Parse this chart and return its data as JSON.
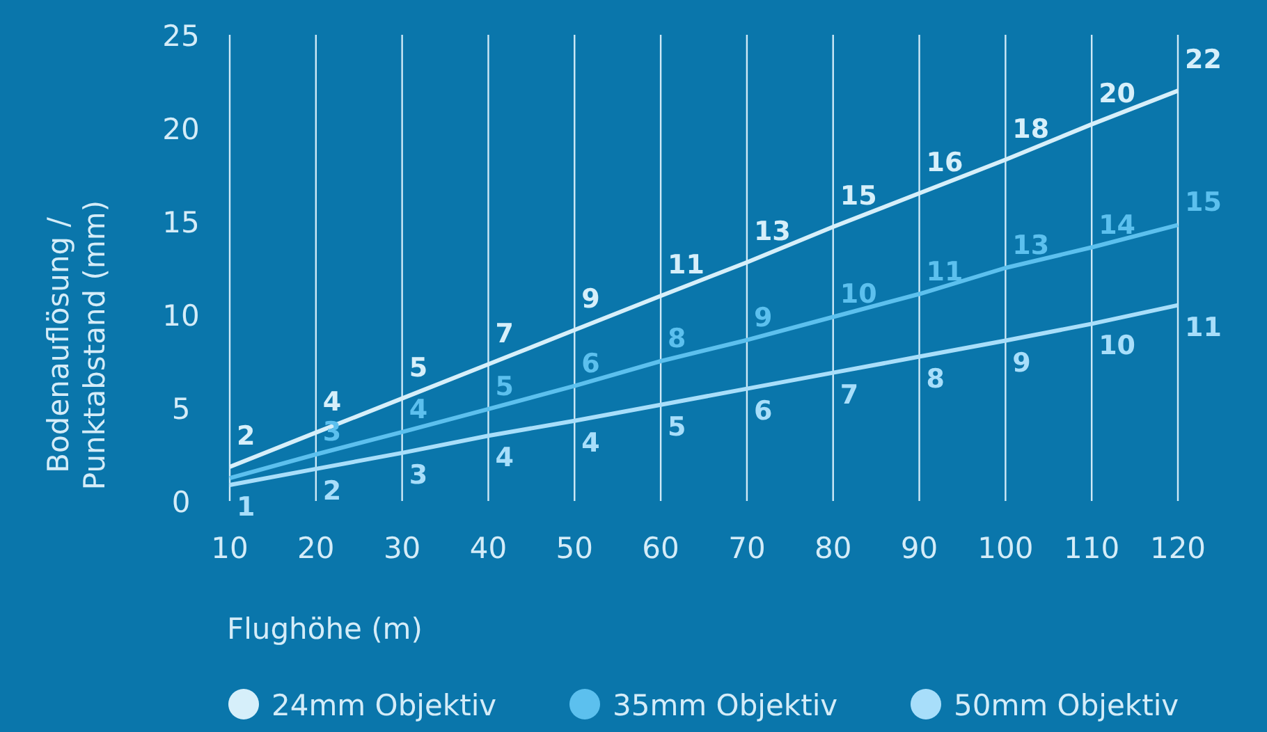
{
  "chart_data": {
    "type": "line",
    "xlabel": "Flughöhe (m)",
    "ylabel": "Bodenauflösung /\nPunktabstand (mm)",
    "x": [
      10,
      20,
      30,
      40,
      50,
      60,
      70,
      80,
      90,
      100,
      110,
      120
    ],
    "xlim": [
      10,
      120
    ],
    "xticks": [
      10,
      20,
      30,
      40,
      50,
      60,
      70,
      80,
      90,
      100,
      110,
      120
    ],
    "ylim": [
      0,
      25
    ],
    "yticks": [
      0,
      5,
      10,
      15,
      20,
      25
    ],
    "grid": "x",
    "legend": "bottom",
    "marker": "none",
    "line_style": "solid",
    "series": [
      {
        "name": "24mm Objektiv",
        "color": "#d6effa",
        "values": [
          1.83,
          3.67,
          5.5,
          7.33,
          9.17,
          11,
          12.8,
          14.7,
          16.5,
          18.3,
          20.2,
          22
        ],
        "value_labels": [
          "2",
          "4",
          "5",
          "7",
          "9",
          "11",
          "13",
          "15",
          "16",
          "18",
          "20",
          "22"
        ]
      },
      {
        "name": "35mm Objektiv",
        "color": "#5cc0ee",
        "values": [
          1.23,
          2.5,
          3.7,
          4.93,
          6.17,
          7.5,
          8.63,
          9.87,
          11.1,
          12.5,
          13.6,
          14.8
        ],
        "value_labels": [
          null,
          "3",
          "4",
          "5",
          "6",
          "8",
          "9",
          "10",
          "11",
          "13",
          "14",
          "15"
        ]
      },
      {
        "name": "50mm Objektiv",
        "color": "#a8defa",
        "values": [
          0.86,
          1.72,
          2.58,
          3.5,
          4.3,
          5.16,
          6.02,
          6.88,
          7.74,
          8.6,
          9.5,
          10.5
        ],
        "value_labels": [
          "1",
          "2",
          "3",
          "4",
          "4",
          "5",
          "6",
          "7",
          "8",
          "9",
          "10",
          "11"
        ]
      }
    ]
  }
}
